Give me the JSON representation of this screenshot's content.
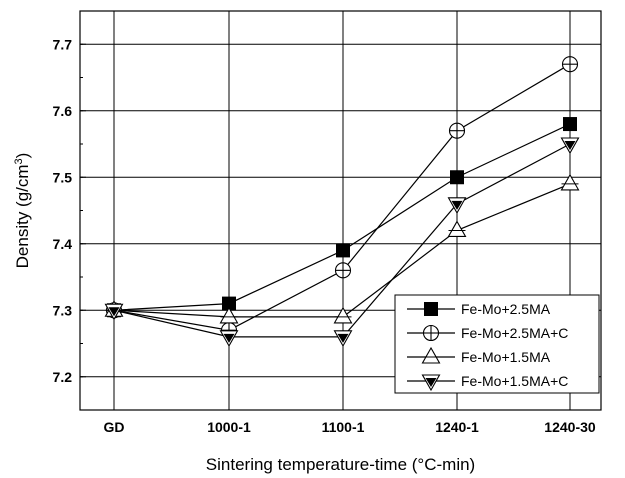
{
  "chart_data": {
    "type": "line",
    "title": "",
    "xlabel": "Sintering temperature-time (°C-min)",
    "ylabel_main": "Density (g/cm",
    "ylabel_sup": "3",
    "ylabel_close": ")",
    "categories": [
      "GD",
      "1000-1",
      "1100-1",
      "1240-1",
      "1240-30"
    ],
    "ylim": [
      7.15,
      7.75
    ],
    "yticks": [
      "7.2",
      "7.3",
      "7.4",
      "7.5",
      "7.6",
      "7.7"
    ],
    "grid": true,
    "legend_position": "bottom-right",
    "series": [
      {
        "name": "Fe-Mo+2.5MA",
        "marker": "filled-square",
        "values": [
          7.3,
          7.31,
          7.39,
          7.5,
          7.58
        ]
      },
      {
        "name": "Fe-Mo+2.5MA+C",
        "marker": "open-circle-plus",
        "values": [
          7.3,
          7.27,
          7.36,
          7.57,
          7.67
        ]
      },
      {
        "name": "Fe-Mo+1.5MA",
        "marker": "open-triangle-up",
        "values": [
          7.3,
          7.29,
          7.29,
          7.42,
          7.49
        ]
      },
      {
        "name": "Fe-Mo+1.5MA+C",
        "marker": "open-filled-triangle-down",
        "values": [
          7.3,
          7.26,
          7.26,
          7.46,
          7.55
        ]
      }
    ]
  }
}
